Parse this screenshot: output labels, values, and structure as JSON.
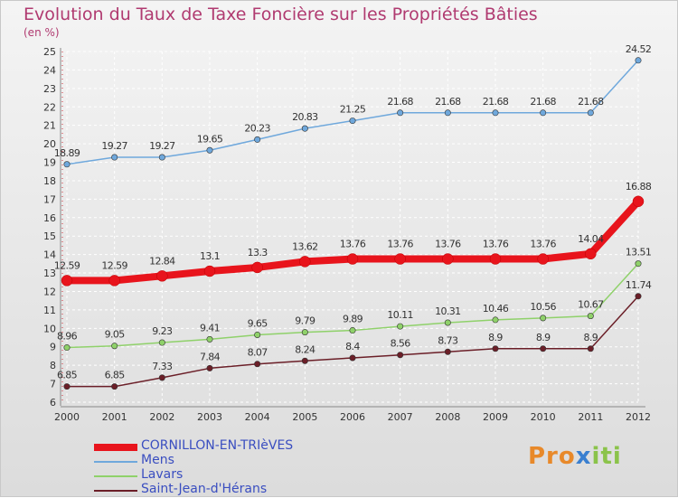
{
  "chart_data": {
    "type": "line",
    "title": "Evolution du Taux de Taxe Foncière sur les Propriétés Bâties",
    "subtitle": "(en %)",
    "x": [
      "2000",
      "2001",
      "2002",
      "2003",
      "2004",
      "2005",
      "2006",
      "2007",
      "2008",
      "2009",
      "2010",
      "2011",
      "2012"
    ],
    "ylim": [
      6,
      25
    ],
    "yticks": [
      6,
      7,
      8,
      9,
      10,
      11,
      12,
      13,
      14,
      15,
      16,
      17,
      18,
      19,
      20,
      21,
      22,
      23,
      24,
      25
    ],
    "grid": true,
    "series": [
      {
        "name": "Mens",
        "color": "#6fa8dc",
        "values": [
          18.89,
          19.27,
          19.27,
          19.65,
          20.23,
          20.83,
          21.25,
          21.68,
          21.68,
          21.68,
          21.68,
          21.68,
          24.52
        ],
        "labels": [
          "18.89",
          "19.27",
          "19.27",
          "19.65",
          "20.23",
          "20.83",
          "21.25",
          "21.68",
          "21.68",
          "21.68",
          "21.68",
          "21.68",
          "24.52"
        ]
      },
      {
        "name": "CORNILLON-EN-TRIèVES",
        "color": "#e8141c",
        "values": [
          12.59,
          12.59,
          12.84,
          13.1,
          13.3,
          13.62,
          13.76,
          13.76,
          13.76,
          13.76,
          13.76,
          14.04,
          16.88
        ],
        "labels": [
          "12.59",
          "12.59",
          "12.84",
          "13.1",
          "13.3",
          "13.62",
          "13.76",
          "13.76",
          "13.76",
          "13.76",
          "13.76",
          "14.04",
          "16.88"
        ]
      },
      {
        "name": "Lavars",
        "color": "#8fd16a",
        "values": [
          8.96,
          9.05,
          9.23,
          9.41,
          9.65,
          9.79,
          9.89,
          10.11,
          10.31,
          10.46,
          10.56,
          10.67,
          13.51
        ],
        "labels": [
          "8.96",
          "9.05",
          "9.23",
          "9.41",
          "9.65",
          "9.79",
          "9.89",
          "10.11",
          "10.31",
          "10.46",
          "10.56",
          "10.67",
          "13.51"
        ]
      },
      {
        "name": "Saint-Jean-d'Hérans",
        "color": "#6b1f28",
        "values": [
          6.85,
          6.85,
          7.33,
          7.84,
          8.07,
          8.24,
          8.4,
          8.56,
          8.73,
          8.9,
          8.9,
          8.9,
          11.74
        ],
        "labels": [
          "6.85",
          "6.85",
          "7.33",
          "7.84",
          "8.07",
          "8.24",
          "8.4",
          "8.56",
          "8.73",
          "8.9",
          "8.9",
          "8.9",
          "11.74"
        ]
      }
    ],
    "legend": [
      {
        "name": "CORNILLON-EN-TRIèVES",
        "color": "#e8141c"
      },
      {
        "name": "Mens",
        "color": "#6fa8dc"
      },
      {
        "name": "Lavars",
        "color": "#8fd16a"
      },
      {
        "name": "Saint-Jean-d'Hérans",
        "color": "#6b1f28"
      }
    ]
  },
  "logo": {
    "p1": "Pro",
    "p2": "x",
    "p3": "iti"
  }
}
